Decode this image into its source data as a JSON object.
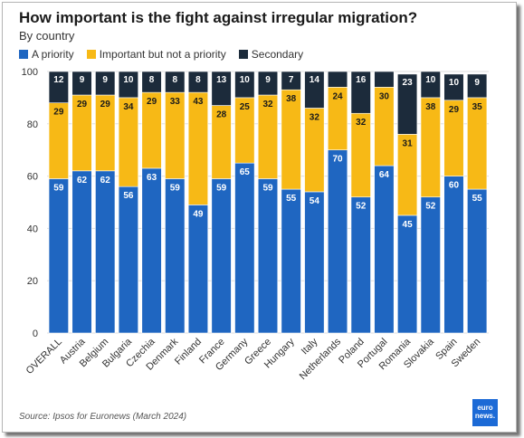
{
  "header": {
    "title": "How important is the fight against irregular migration?",
    "subtitle": "By country"
  },
  "source": "Source: Ipsos for Euronews (March 2024)",
  "logo": {
    "line1": "euro",
    "line2": "news."
  },
  "colors": {
    "priority": "#1f66c1",
    "important": "#f7b916",
    "secondary": "#1c2b3b"
  },
  "chart_data": {
    "type": "bar",
    "stacked": true,
    "title": "How important is the fight against irregular migration?",
    "subtitle": "By country",
    "categories": [
      "OVERALL",
      "Austria",
      "Belgium",
      "Bulgaria",
      "Czechia",
      "Denmark",
      "Finland",
      "France",
      "Germany",
      "Greece",
      "Hungary",
      "Italy",
      "Netherlands",
      "Poland",
      "Portugal",
      "Romania",
      "Slovakia",
      "Spain",
      "Sweden"
    ],
    "series": [
      {
        "name": "A priority",
        "values": [
          59,
          62,
          62,
          56,
          63,
          59,
          49,
          59,
          65,
          59,
          55,
          54,
          70,
          52,
          64,
          45,
          52,
          60,
          55
        ]
      },
      {
        "name": "Important but not a priority",
        "values": [
          29,
          29,
          29,
          34,
          29,
          33,
          43,
          28,
          25,
          32,
          38,
          32,
          24,
          32,
          30,
          31,
          38,
          29,
          35
        ]
      },
      {
        "name": "Secondary",
        "values": [
          12,
          9,
          9,
          10,
          8,
          8,
          8,
          13,
          10,
          9,
          7,
          14,
          null,
          16,
          null,
          23,
          10,
          10,
          9
        ]
      }
    ],
    "ylim": [
      0,
      100
    ],
    "yticks": [
      0,
      20,
      40,
      60,
      80,
      100
    ],
    "grid": true,
    "legend": "top-left"
  }
}
